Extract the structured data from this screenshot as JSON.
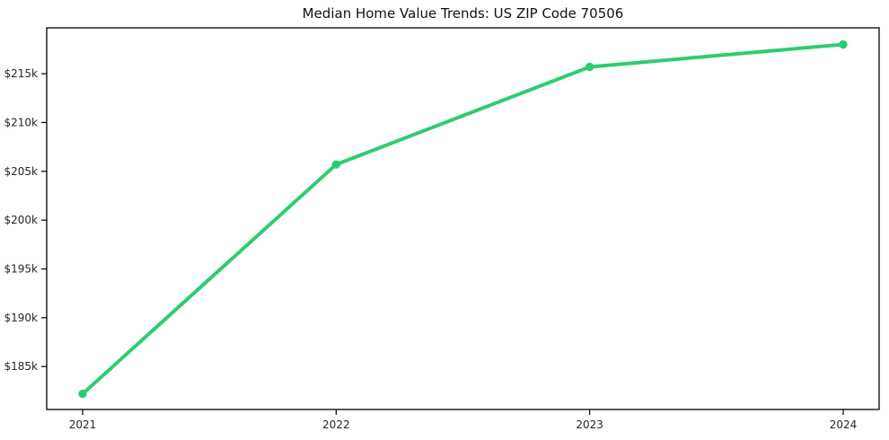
{
  "chart_data": {
    "type": "line",
    "title": "Median Home Value Trends: US ZIP Code 70506",
    "categories": [
      "2021",
      "2022",
      "2023",
      "2024"
    ],
    "series": [
      {
        "name": "Median Home Value",
        "values": [
          182200,
          205700,
          215700,
          218000
        ]
      }
    ],
    "xlabel": "",
    "ylabel": "",
    "ylim": [
      180600,
      219700
    ],
    "yticks": {
      "values": [
        185000,
        190000,
        195000,
        200000,
        205000,
        210000,
        215000
      ],
      "labels": [
        "$185k",
        "$190k",
        "$195k",
        "$200k",
        "$205k",
        "$210k",
        "$215k"
      ]
    },
    "grid": false,
    "legend": "none",
    "line_color": "#2ecc71",
    "marker_color": "#2ecc71",
    "frame_color": "#000000",
    "tick_text_color": "#262626",
    "background_color": "#ffffff"
  }
}
